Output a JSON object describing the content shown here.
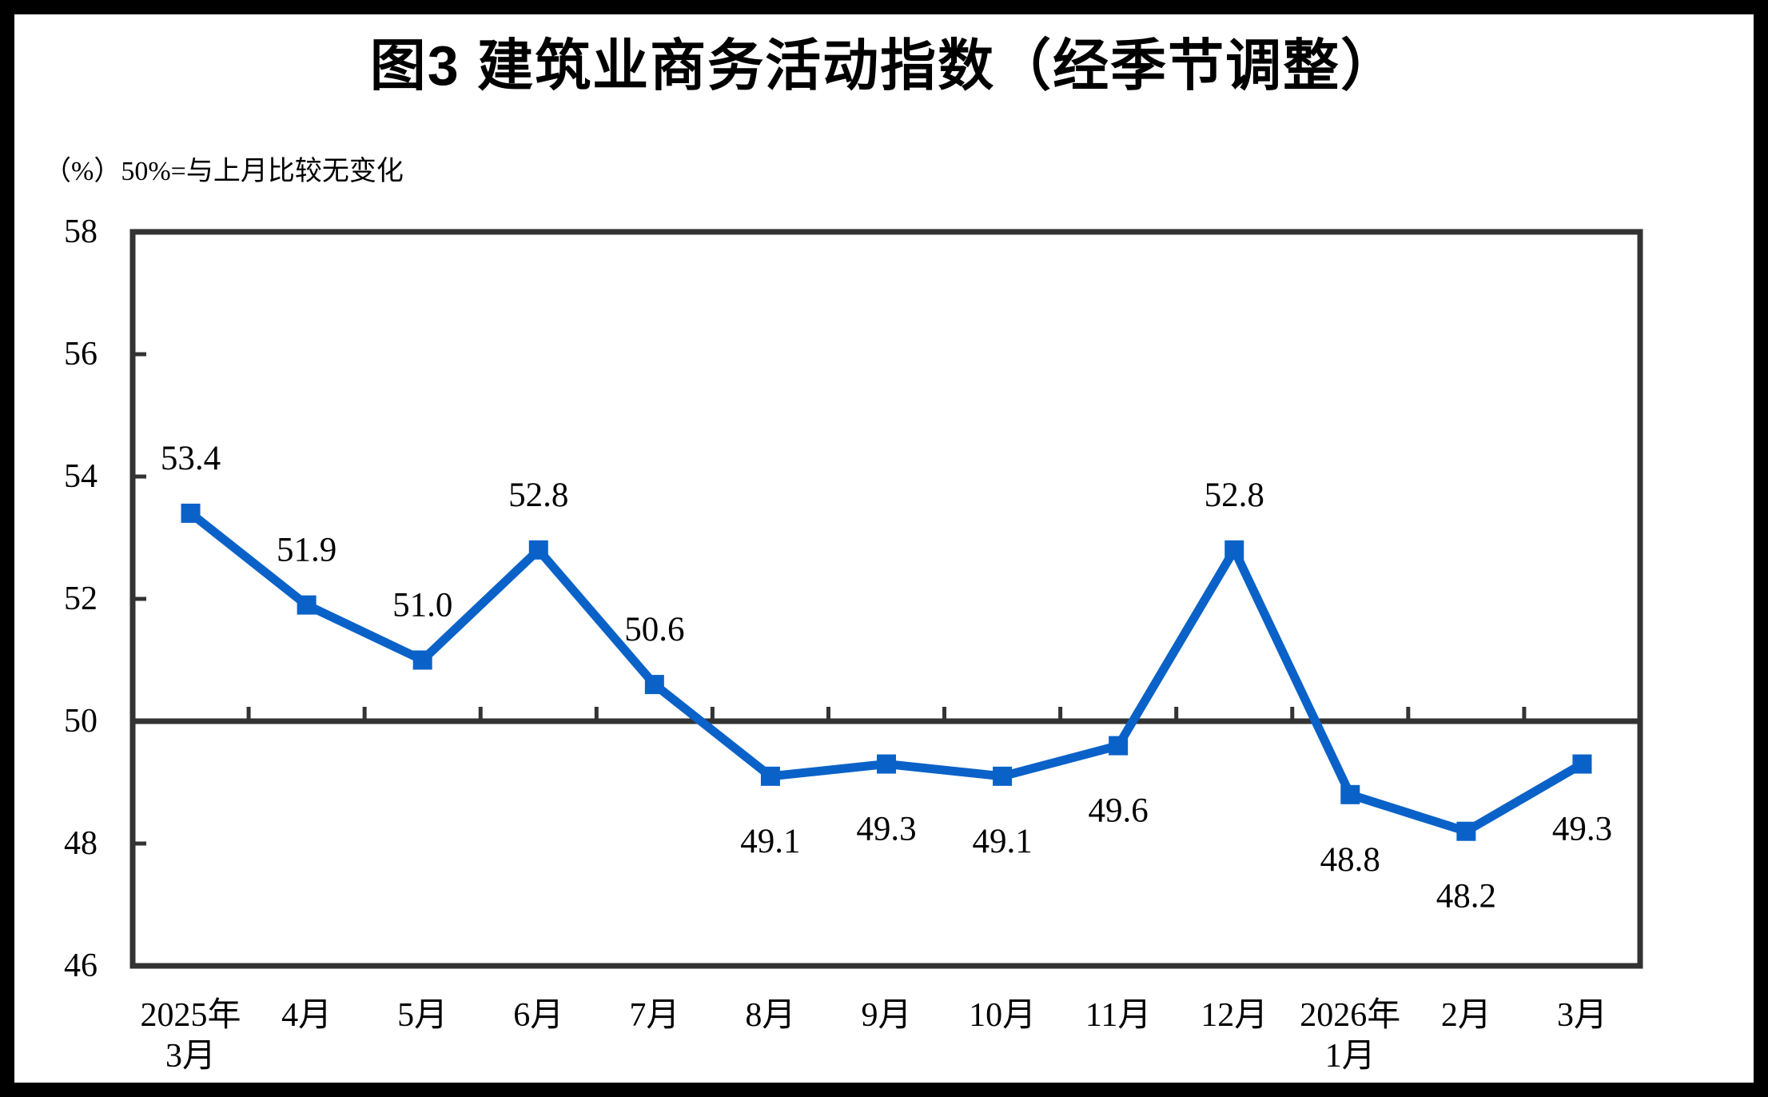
{
  "title": "图3  建筑业商务活动指数（经季节调整）",
  "unit_note": "（%）50%=与上月比较无变化",
  "chart_data": {
    "type": "line",
    "series_name": "建筑业商务活动指数",
    "categories": [
      [
        "2025年",
        "3月"
      ],
      [
        "4月"
      ],
      [
        "5月"
      ],
      [
        "6月"
      ],
      [
        "7月"
      ],
      [
        "8月"
      ],
      [
        "9月"
      ],
      [
        "10月"
      ],
      [
        "11月"
      ],
      [
        "12月"
      ],
      [
        "2026年",
        "1月"
      ],
      [
        "2月"
      ],
      [
        "3月"
      ]
    ],
    "values": [
      53.4,
      51.9,
      51.0,
      52.8,
      50.6,
      49.1,
      49.3,
      49.1,
      49.6,
      52.8,
      48.8,
      48.2,
      49.3
    ],
    "data_labels": [
      "53.4",
      "51.9",
      "51.0",
      "52.8",
      "50.6",
      "49.1",
      "49.3",
      "49.1",
      "49.6",
      "52.8",
      "48.8",
      "48.2",
      "49.3"
    ],
    "ylim": [
      46,
      58
    ],
    "ytick_step": 2,
    "ytick_labels": [
      "46",
      "48",
      "50",
      "52",
      "54",
      "56",
      "58"
    ],
    "reference_line": 50,
    "grid": false,
    "legend_position": "none",
    "colors": {
      "line": "#0A62C8",
      "marker": "#0A62C8",
      "axis": "#333333",
      "text": "#000000"
    }
  }
}
